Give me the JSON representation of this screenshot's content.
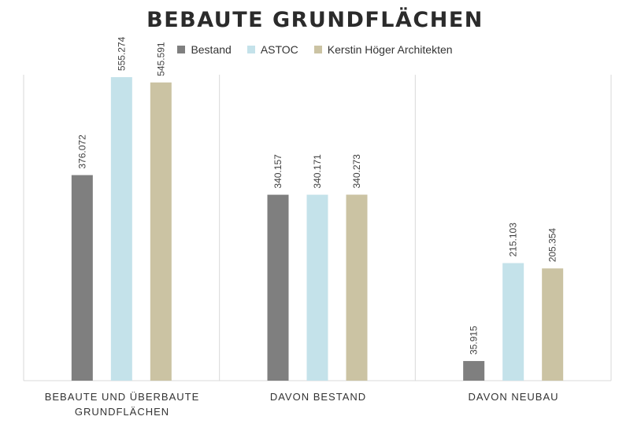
{
  "chart_data": {
    "type": "bar",
    "title": "BEBAUTE GRUNDFLÄCHEN",
    "categories": [
      "BEBAUTE UND ÜBERBAUTE GRUNDFLÄCHEN",
      "DAVON BESTAND",
      "DAVON NEUBAU"
    ],
    "series": [
      {
        "name": "Bestand",
        "color": "#7f7f7f",
        "values": [
          376.072,
          340.157,
          35.915
        ],
        "labels": [
          "376.072",
          "340.157",
          "35.915"
        ]
      },
      {
        "name": "ASTOC",
        "color": "#c4e2ea",
        "values": [
          555.274,
          340.171,
          215.103
        ],
        "labels": [
          "555.274",
          "340.171",
          "215.103"
        ]
      },
      {
        "name": "Kerstin Höger Architekten",
        "color": "#cbc3a3",
        "values": [
          545.591,
          340.273,
          205.354
        ],
        "labels": [
          "545.591",
          "340.273",
          "205.354"
        ]
      }
    ],
    "ylim": [
      0,
      600
    ],
    "grid": false,
    "legend": "top"
  }
}
